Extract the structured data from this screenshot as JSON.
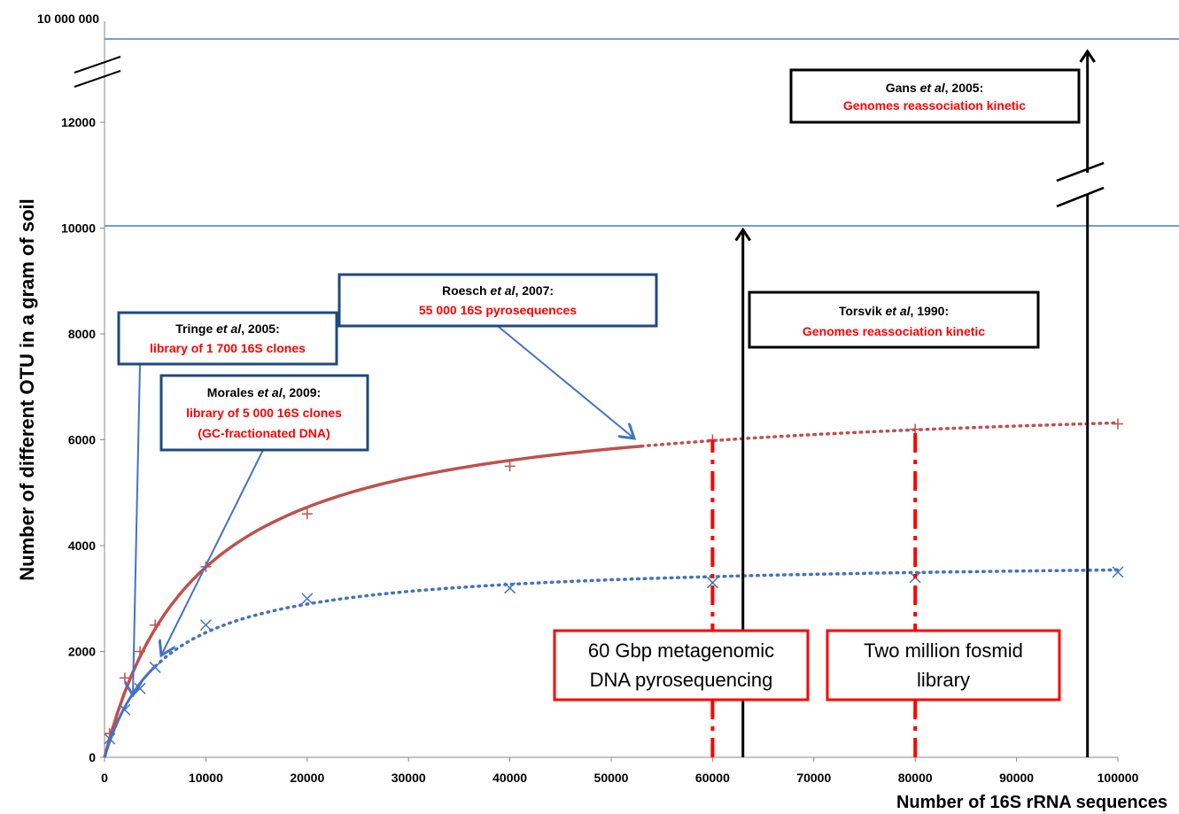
{
  "chart_data": {
    "type": "line",
    "xlabel": "Number of 16S rRNA sequences",
    "ylabel": "Number of different OTU in a gram of soil",
    "xlim": [
      0,
      100000
    ],
    "ylim": [
      0,
      12000
    ],
    "x_ticks": [
      "0",
      "10000",
      "20000",
      "30000",
      "40000",
      "50000",
      "60000",
      "70000",
      "80000",
      "90000",
      "100000"
    ],
    "y_ticks": [
      "0",
      "2000",
      "4000",
      "6000",
      "8000",
      "10000",
      "12000"
    ],
    "y_break_label": "10 000 000",
    "series": [
      {
        "color": "#c0504d",
        "marker": "plus",
        "style": "solid-then-dotted",
        "x": [
          500,
          2000,
          3500,
          5000,
          10000,
          20000,
          40000,
          60000,
          80000,
          100000
        ],
        "y": [
          450,
          1500,
          2000,
          2500,
          3600,
          4600,
          5500,
          6000,
          6200,
          6300
        ]
      },
      {
        "color": "#4472c4",
        "marker": "cross",
        "style": "dotted",
        "x": [
          500,
          2000,
          3500,
          5000,
          10000,
          20000,
          40000,
          60000,
          80000,
          100000
        ],
        "y": [
          350,
          900,
          1300,
          1700,
          2500,
          3000,
          3200,
          3300,
          3400,
          3500
        ]
      }
    ],
    "vertical_markers": [
      {
        "x": 60000,
        "color": "#ff0000",
        "style": "dash-dot",
        "top": 6000
      },
      {
        "x": 80000,
        "color": "#ff0000",
        "style": "dash-dot",
        "top": 6200
      },
      {
        "x": 63000,
        "color": "#000000",
        "style": "arrow",
        "top": 10000
      },
      {
        "x": 97000,
        "color": "#000000",
        "style": "arrow",
        "top": 10000000
      }
    ]
  },
  "annotations": {
    "roesch": {
      "line1": "Roesch ",
      "italic": "et al",
      "line1b": ", 2007:",
      "line2": "55 000 16S pyrosequences"
    },
    "tringe": {
      "line1": "Tringe ",
      "italic": "et al",
      "line1b": ", 2005:",
      "line2": "library of 1 700 16S clones"
    },
    "morales": {
      "line1": "Morales ",
      "italic": "et al",
      "line1b": ", 2009:",
      "line2": "library of 5 000 16S clones",
      "line3": "(GC-fractionated DNA)"
    },
    "torsvik": {
      "line1": "Torsvik ",
      "italic": "et al",
      "line1b": ", 1990:",
      "line2": "Genomes reassociation  kinetic"
    },
    "gans": {
      "line1": "Gans ",
      "italic": "et al",
      "line1b": ", 2005:",
      "line2": "Genomes reassociation  kinetic"
    },
    "metagenomic": {
      "line1": "60 Gbp metagenomic",
      "line2": "DNA pyrosequencing"
    },
    "fosmid": {
      "line1": "Two million fosmid",
      "line2": "library"
    }
  }
}
